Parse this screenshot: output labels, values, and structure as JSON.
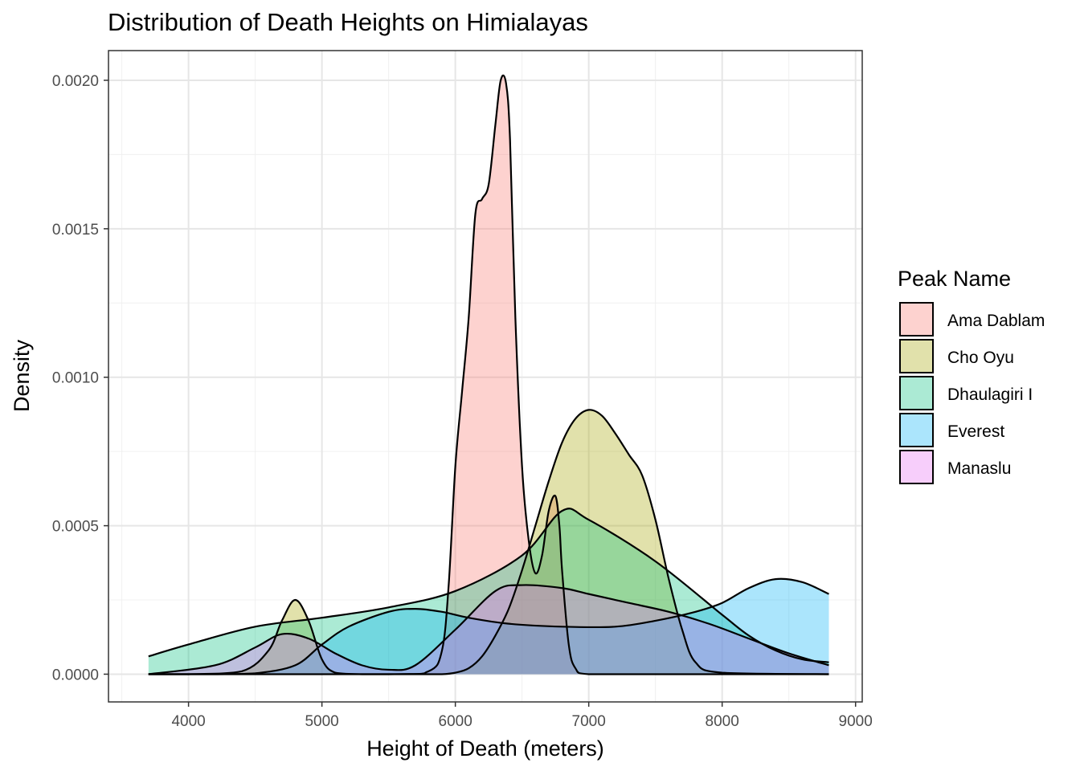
{
  "chart_data": {
    "type": "area",
    "title": "Distribution of Death Heights on Himialayas",
    "xlabel": "Height of Death (meters)",
    "ylabel": "Density",
    "xlim": [
      3400,
      9050
    ],
    "ylim": [
      -9.34e-05,
      0.0021
    ],
    "x_ticks": [
      4000,
      5000,
      6000,
      7000,
      8000,
      9000
    ],
    "x_tick_labels": [
      "4000",
      "5000",
      "6000",
      "7000",
      "8000",
      "9000"
    ],
    "y_ticks": [
      0,
      0.0005,
      0.001,
      0.0015,
      0.002
    ],
    "y_tick_labels": [
      "0.0000",
      "0.0005",
      "0.0010",
      "0.0015",
      "0.0020"
    ],
    "grid": true,
    "legend": {
      "title": "Peak Name",
      "placement": "right",
      "entries": [
        "Ama Dablam",
        "Cho Oyu",
        "Dhaulagiri I",
        "Everest",
        "Manaslu"
      ]
    },
    "series": [
      {
        "name": "Ama Dablam",
        "color": "#F8766D",
        "x": [
          3700,
          5500,
          5800,
          5900,
          5950,
          6000,
          6050,
          6100,
          6150,
          6200,
          6250,
          6300,
          6340,
          6380,
          6410,
          6450,
          6500,
          6550,
          6600,
          6650,
          6700,
          6750,
          6780,
          6800,
          6850,
          6900,
          7000,
          7500,
          8000,
          8800
        ],
        "y": [
          0,
          0,
          1e-05,
          8e-05,
          0.0003,
          0.0007,
          0.00095,
          0.0012,
          0.00155,
          0.0016,
          0.00165,
          0.00185,
          0.002,
          0.00199,
          0.0018,
          0.0012,
          0.0007,
          0.00045,
          0.00034,
          0.0004,
          0.00055,
          0.0006,
          0.0005,
          0.00035,
          0.0001,
          2e-05,
          0,
          0,
          0,
          0
        ]
      },
      {
        "name": "Cho Oyu",
        "color": "#A3A500",
        "x": [
          3700,
          4000,
          4400,
          4600,
          4700,
          4800,
          4900,
          5000,
          5100,
          5300,
          5500,
          5700,
          5900,
          6000,
          6100,
          6200,
          6300,
          6400,
          6500,
          6600,
          6700,
          6800,
          6900,
          7000,
          7100,
          7200,
          7300,
          7400,
          7500,
          7600,
          7700,
          7800,
          8000,
          8800
        ],
        "y": [
          0,
          0,
          1e-05,
          8e-05,
          0.00018,
          0.00025,
          0.00018,
          5e-05,
          5e-06,
          0,
          0,
          0,
          0,
          5e-06,
          2e-05,
          6e-05,
          0.00013,
          0.00022,
          0.00035,
          0.0005,
          0.00065,
          0.00078,
          0.00086,
          0.00089,
          0.00087,
          0.00081,
          0.00074,
          0.00067,
          0.00052,
          0.00032,
          0.00015,
          4e-05,
          5e-06,
          0
        ]
      },
      {
        "name": "Dhaulagiri I",
        "color": "#00BF7D",
        "x": [
          3700,
          4000,
          4500,
          5000,
          5500,
          6000,
          6500,
          6800,
          7000,
          7500,
          8000,
          8200,
          8400,
          8600,
          8800
        ],
        "y": [
          6e-05,
          0.0001,
          0.00016,
          0.00019,
          0.000225,
          0.00028,
          0.0004,
          0.00055,
          0.00052,
          0.00038,
          0.0002,
          0.00013,
          8e-05,
          5e-05,
          4e-05
        ]
      },
      {
        "name": "Everest",
        "color": "#00B0F6",
        "x": [
          3700,
          4200,
          4500,
          4800,
          5000,
          5200,
          5500,
          5700,
          5900,
          6100,
          6400,
          6800,
          7200,
          7500,
          7800,
          8000,
          8200,
          8400,
          8600,
          8800
        ],
        "y": [
          0,
          0,
          3e-06,
          3e-05,
          0.0001,
          0.00016,
          0.00021,
          0.00022,
          0.00021,
          0.00019,
          0.00017,
          0.00016,
          0.00016,
          0.00018,
          0.00021,
          0.00024,
          0.00029,
          0.00032,
          0.00031,
          0.00027
        ]
      },
      {
        "name": "Manaslu",
        "color": "#E76BF3",
        "x": [
          3700,
          4200,
          4500,
          4700,
          4900,
          5100,
          5300,
          5500,
          5700,
          6000,
          6300,
          6500,
          6800,
          7000,
          7300,
          7600,
          7900,
          8200,
          8500,
          8800
        ],
        "y": [
          0,
          3e-05,
          9e-05,
          0.000135,
          0.00012,
          7e-05,
          3e-05,
          1.5e-05,
          3e-05,
          0.00015,
          0.00028,
          0.0003,
          0.00029,
          0.00027,
          0.00024,
          0.00021,
          0.00017,
          0.00012,
          7e-05,
          3e-05
        ]
      }
    ]
  }
}
